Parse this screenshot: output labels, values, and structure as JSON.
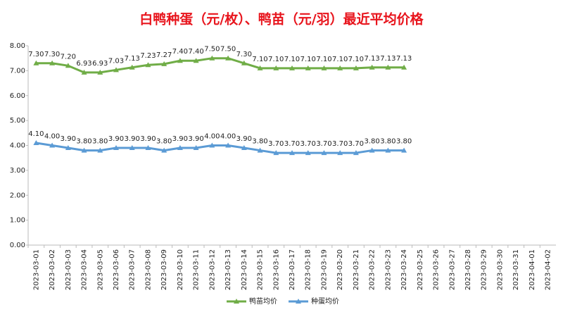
{
  "chart_data": {
    "type": "line",
    "title": "白鸭种蛋（元/枚）、鸭苗（元/羽）最近平均价格",
    "categories": [
      "2023-03-01",
      "2023-03-02",
      "2023-03-03",
      "2023-03-04",
      "2023-03-05",
      "2023-03-06",
      "2023-03-07",
      "2023-03-08",
      "2023-03-09",
      "2023-03-10",
      "2023-03-11",
      "2023-03-12",
      "2023-03-13",
      "2023-03-14",
      "2023-03-15",
      "2023-03-16",
      "2023-03-17",
      "2023-03-18",
      "2023-03-19",
      "2023-03-20",
      "2023-03-21",
      "2023-03-22",
      "2023-03-23",
      "2023-03-24",
      "2023-03-25",
      "2023-03-26",
      "2023-03-27",
      "2023-03-28",
      "2023-03-29",
      "2023-03-30",
      "2023-03-31",
      "2023-04-01",
      "2023-04-02"
    ],
    "series": [
      {
        "name": "鸭苗均价",
        "color": "#70ad47",
        "values": [
          7.3,
          7.3,
          7.2,
          6.93,
          6.93,
          7.03,
          7.13,
          7.23,
          7.27,
          7.4,
          7.4,
          7.5,
          7.5,
          7.3,
          7.1,
          7.1,
          7.1,
          7.1,
          7.1,
          7.1,
          7.1,
          7.13,
          7.13,
          7.13,
          null,
          null,
          null,
          null,
          null,
          null,
          null,
          null,
          null
        ],
        "value_labels": [
          "7.30",
          "7.30",
          "7.20",
          "6.93",
          "6.93",
          "7.03",
          "7.13",
          "7.23",
          "7.27",
          "7.40",
          "7.40",
          "7.50",
          "7.50",
          "7.30",
          "7.10",
          "7.10",
          "7.10",
          "7.10",
          "7.10",
          "7.10",
          "7.10",
          "7.13",
          "7.13",
          "7.13",
          null,
          null,
          null,
          null,
          null,
          null,
          null,
          null,
          null
        ]
      },
      {
        "name": "种蛋均价",
        "color": "#5b9bd5",
        "values": [
          4.1,
          4.0,
          3.9,
          3.8,
          3.8,
          3.9,
          3.9,
          3.9,
          3.8,
          3.9,
          3.9,
          4.0,
          4.0,
          3.9,
          3.8,
          3.7,
          3.7,
          3.7,
          3.7,
          3.7,
          3.7,
          3.8,
          3.8,
          3.8,
          null,
          null,
          null,
          null,
          null,
          null,
          null,
          null,
          null
        ],
        "value_labels": [
          "4.10",
          "4.00",
          "3.90",
          "3.80",
          "3.80",
          "3.90",
          "3.90",
          "3.90",
          "3.80",
          "3.90",
          "3.90",
          "4.00",
          "4.00",
          "3.90",
          "3.80",
          "3.70",
          "3.70",
          "3.70",
          "3.70",
          "3.70",
          "3.70",
          "3.80",
          "3.80",
          "3.80",
          null,
          null,
          null,
          null,
          null,
          null,
          null,
          null,
          null
        ]
      }
    ],
    "ylim": [
      0,
      8
    ],
    "yticks": [
      {
        "value": 0,
        "label": "0.00"
      },
      {
        "value": 1,
        "label": "1.00"
      },
      {
        "value": 2,
        "label": "2.00"
      },
      {
        "value": 3,
        "label": "3.00"
      },
      {
        "value": 4,
        "label": "4.00"
      },
      {
        "value": 5,
        "label": "5.00"
      },
      {
        "value": 6,
        "label": "6.00"
      },
      {
        "value": 7,
        "label": "7.00"
      },
      {
        "value": 8,
        "label": "8.00"
      }
    ],
    "grid": false,
    "legend": "bottom"
  }
}
